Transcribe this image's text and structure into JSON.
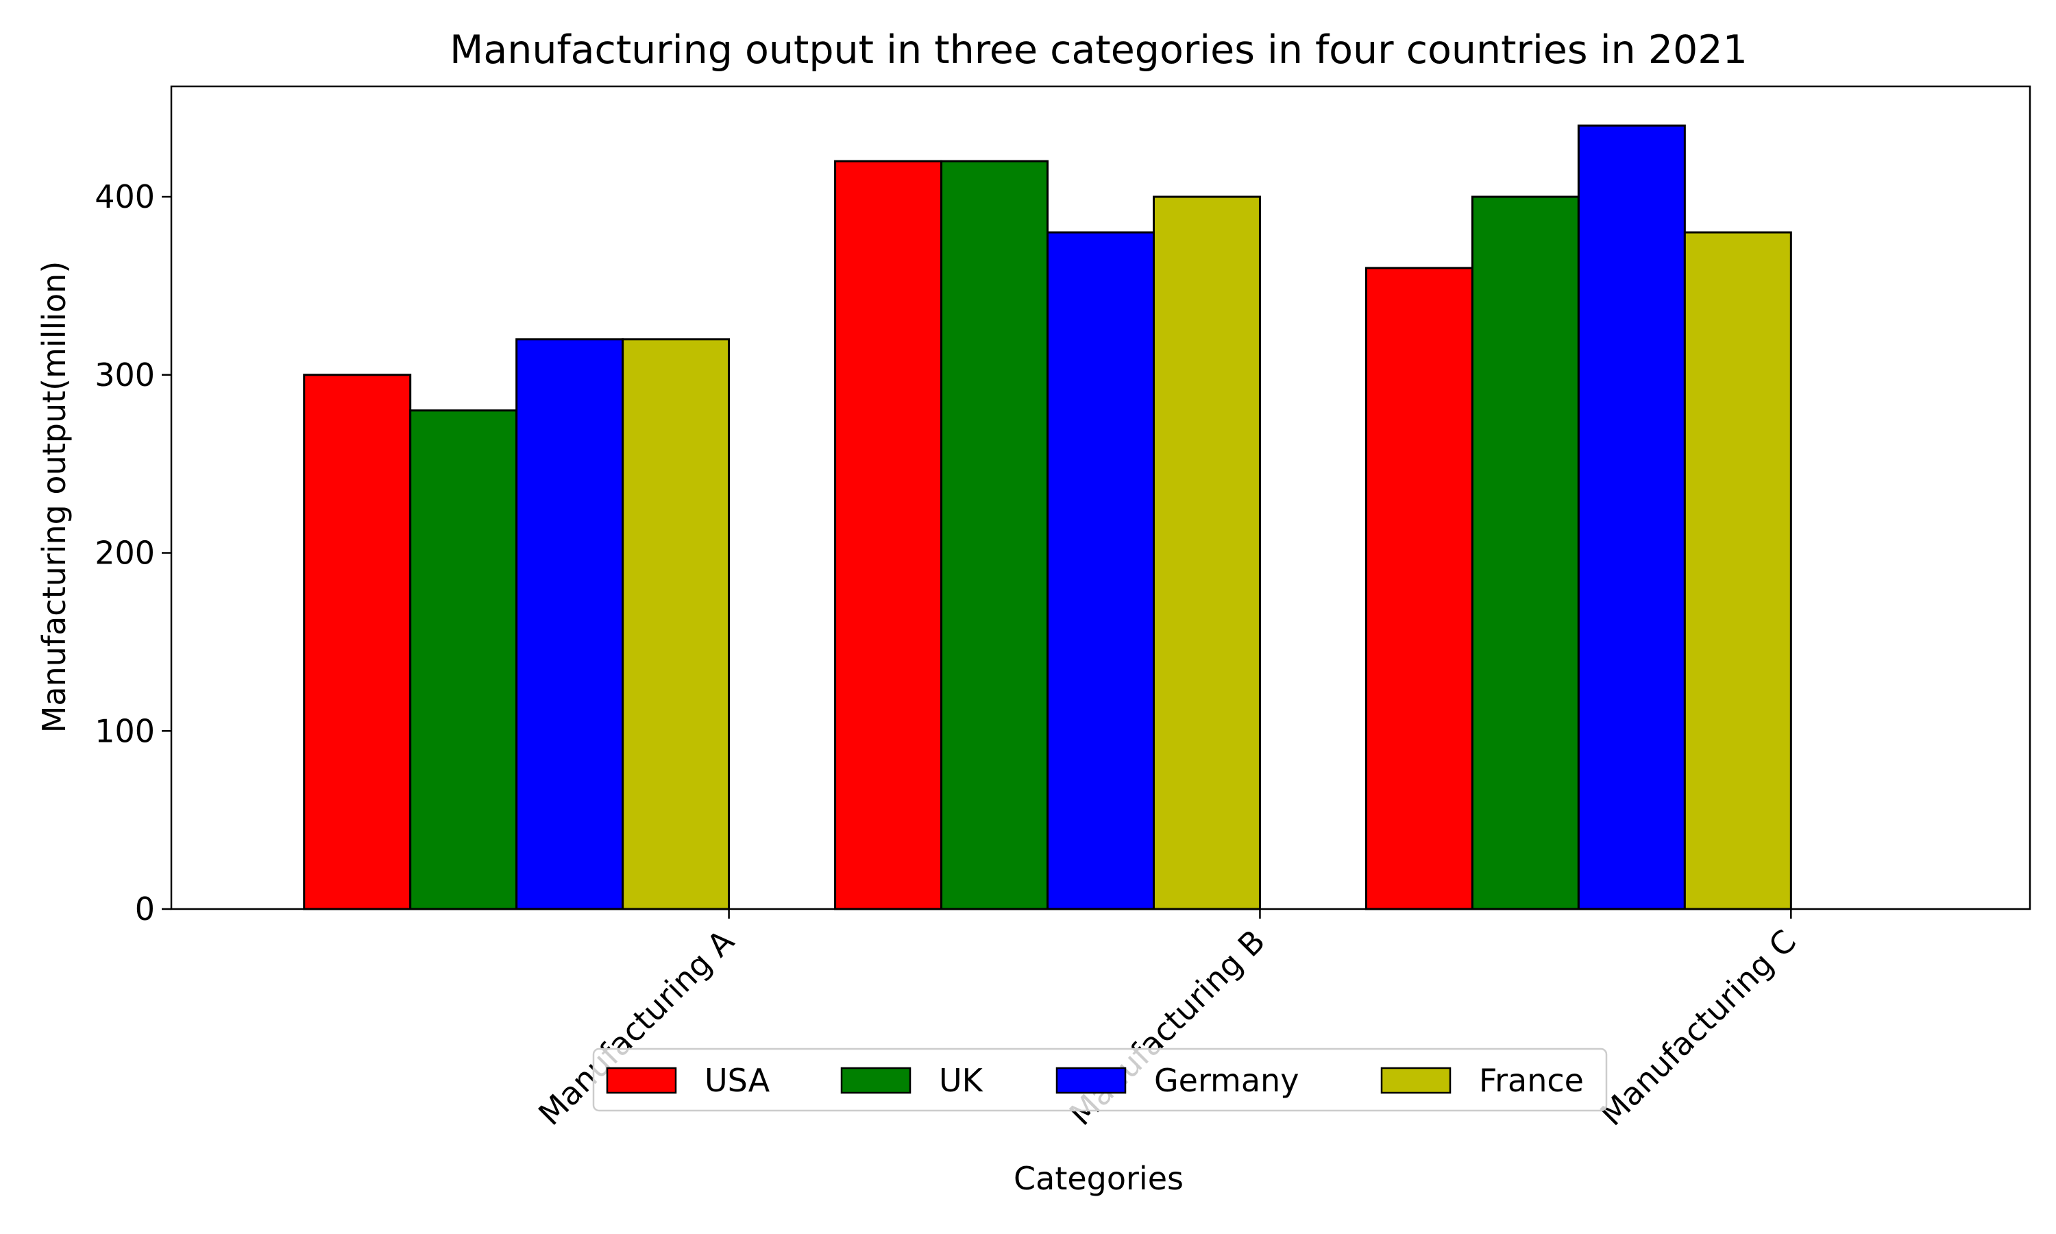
{
  "chart_data": {
    "type": "bar",
    "title": "Manufacturing output in three categories in four countries in 2021",
    "xlabel": "Categories",
    "ylabel": "Manufacturing output(million)",
    "categories": [
      "Manufacturing A",
      "Manufacturing B",
      "Manufacturing C"
    ],
    "series": [
      {
        "name": "USA",
        "color": "#ff0000",
        "values": [
          300,
          420,
          360
        ]
      },
      {
        "name": "UK",
        "color": "#008000",
        "values": [
          280,
          420,
          400
        ]
      },
      {
        "name": "Germany",
        "color": "#0000ff",
        "values": [
          320,
          380,
          440
        ]
      },
      {
        "name": "France",
        "color": "#bfbf00",
        "values": [
          320,
          400,
          380
        ]
      }
    ],
    "ylim": [
      0,
      462
    ],
    "yticks": [
      0,
      100,
      200,
      300,
      400
    ],
    "grid": false,
    "legend_position": "bottom-center"
  }
}
